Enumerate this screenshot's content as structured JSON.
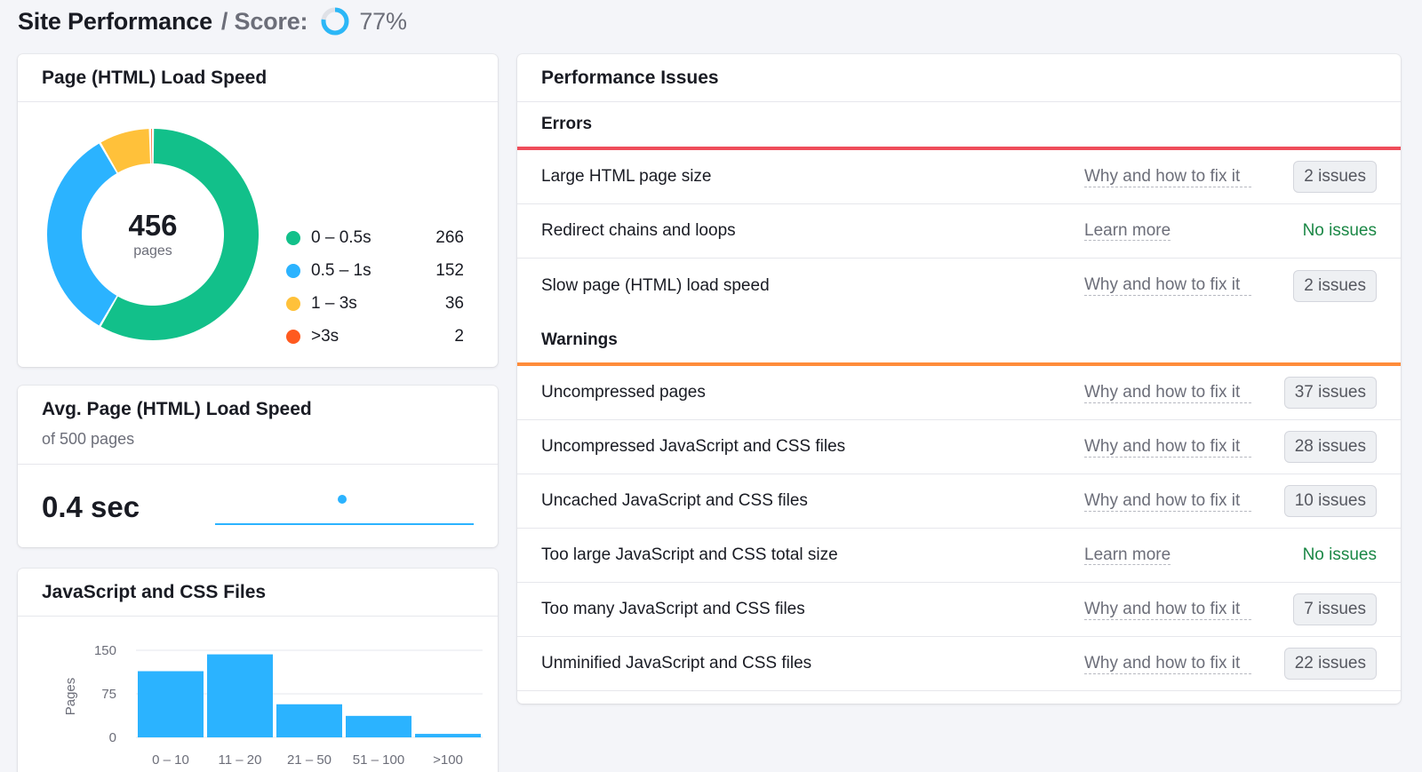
{
  "header": {
    "title": "Site Performance",
    "separator": "/ Score:",
    "score": "77%",
    "score_fraction": 0.77,
    "ring_color": "#2bb7f7"
  },
  "load_speed": {
    "title": "Page (HTML) Load Speed",
    "total": "456",
    "total_label": "pages",
    "legend": [
      {
        "label": "0 – 0.5s",
        "value": "266",
        "color": "#12c08a"
      },
      {
        "label": "0.5 – 1s",
        "value": "152",
        "color": "#2bb3ff"
      },
      {
        "label": "1 – 3s",
        "value": "36",
        "color": "#ffc13a"
      },
      {
        "label": ">3s",
        "value": "2",
        "color": "#ff5a1f"
      }
    ]
  },
  "avg_speed": {
    "title": "Avg. Page (HTML) Load Speed",
    "subtitle": "of 500 pages",
    "value": "0.4 sec"
  },
  "js_css": {
    "title": "JavaScript and CSS Files"
  },
  "chart_data": {
    "type": "bar",
    "categories": [
      "0 – 10",
      "11 – 20",
      "21 – 50",
      "51 – 100",
      ">100"
    ],
    "values": [
      114,
      143,
      57,
      37,
      6
    ],
    "ylabel": "Pages",
    "yticks": [
      "150",
      "75",
      "0"
    ],
    "ylim": [
      0,
      150
    ],
    "grid": true,
    "color": "#2bb3ff"
  },
  "issues": {
    "title": "Performance Issues",
    "errors": {
      "heading": "Errors",
      "color": "#ef4d5a",
      "rows": [
        {
          "name": "Large HTML page size",
          "help": "Why and how to fix it",
          "status": "2 issues",
          "type": "badge"
        },
        {
          "name": "Redirect chains and loops",
          "help": "Learn more",
          "status": "No issues",
          "type": "ok"
        },
        {
          "name": "Slow page (HTML) load speed",
          "help": "Why and how to fix it",
          "status": "2 issues",
          "type": "badge"
        }
      ]
    },
    "warnings": {
      "heading": "Warnings",
      "color": "#ff8c3a",
      "rows": [
        {
          "name": "Uncompressed pages",
          "help": "Why and how to fix it",
          "status": "37 issues",
          "type": "badge"
        },
        {
          "name": "Uncompressed JavaScript and CSS files",
          "help": "Why and how to fix it",
          "status": "28 issues",
          "type": "badge"
        },
        {
          "name": "Uncached JavaScript and CSS files",
          "help": "Why and how to fix it",
          "status": "10 issues",
          "type": "badge"
        },
        {
          "name": "Too large JavaScript and CSS total size",
          "help": "Learn more",
          "status": "No issues",
          "type": "ok"
        },
        {
          "name": "Too many JavaScript and CSS files",
          "help": "Why and how to fix it",
          "status": "7 issues",
          "type": "badge"
        },
        {
          "name": "Unminified JavaScript and CSS files",
          "help": "Why and how to fix it",
          "status": "22 issues",
          "type": "badge"
        }
      ]
    }
  }
}
